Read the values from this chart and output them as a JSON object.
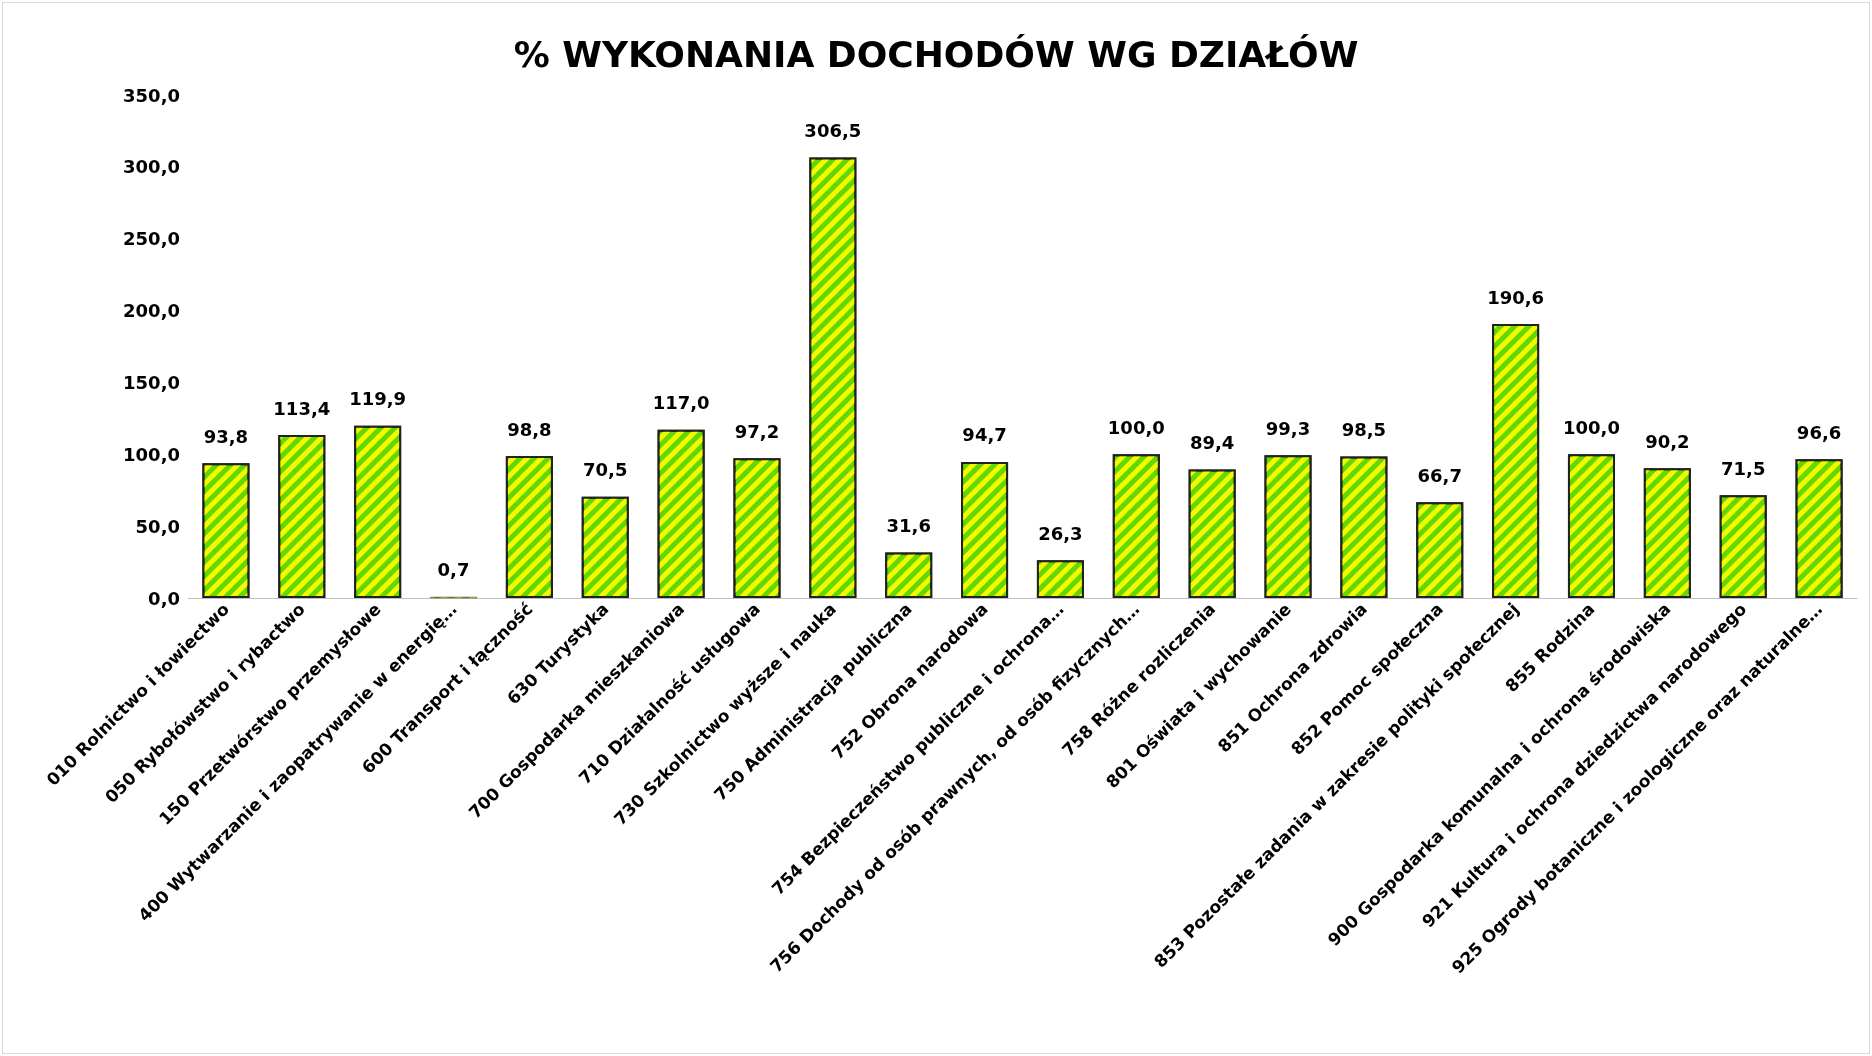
{
  "chart_data": {
    "type": "bar",
    "title": "% WYKONANIA DOCHODÓW WG DZIAŁÓW",
    "categories": [
      "010 Rolnictwo i łowiectwo",
      "050 Rybołówstwo i rybactwo",
      "150 Przetwórstwo przemysłowe",
      "400 Wytwarzanie i zaopatrywanie w energię…",
      "600 Transport i łączność",
      "630 Turystyka",
      "700 Gospodarka mieszkaniowa",
      "710 Działalność usługowa",
      "730 Szkolnictwo wyższe i nauka",
      "750 Administracja publiczna",
      "752 Obrona narodowa",
      "754 Bezpieczeństwo publiczne i ochrona…",
      "756 Dochody od osób prawnych, od osób fizycznych…",
      "758 Różne rozliczenia",
      "801 Oświata i wychowanie",
      "851 Ochrona zdrowia",
      "852 Pomoc społeczna",
      "853 Pozostałe zadania w zakresie polityki społecznej",
      "855 Rodzina",
      "900 Gospodarka komunalna i ochrona środowiska",
      "921 Kultura i ochrona dziedzictwa narodowego",
      "925 Ogrody botaniczne i zoologiczne oraz naturalne…"
    ],
    "values": [
      93.8,
      113.4,
      119.9,
      0.7,
      98.8,
      70.5,
      117.0,
      97.2,
      306.5,
      31.6,
      94.7,
      26.3,
      100.0,
      89.4,
      99.3,
      98.5,
      66.7,
      190.6,
      100.0,
      90.2,
      71.5,
      96.6
    ],
    "value_labels": [
      "93,8",
      "113,4",
      "119,9",
      "0,7",
      "98,8",
      "70,5",
      "117,0",
      "97,2",
      "306,5",
      "31,6",
      "94,7",
      "26,3",
      "100,0",
      "89,4",
      "99,3",
      "98,5",
      "66,7",
      "190,6",
      "100,0",
      "90,2",
      "71,5",
      "96,6"
    ],
    "color": "#66d600",
    "ylim": [
      0,
      350
    ],
    "yticks": [
      {
        "value": 0,
        "label": "0,0"
      },
      {
        "value": 50,
        "label": "50,0"
      },
      {
        "value": 100,
        "label": "100,0"
      },
      {
        "value": 150,
        "label": "150,0"
      },
      {
        "value": 200,
        "label": "200,0"
      },
      {
        "value": 250,
        "label": "250,0"
      },
      {
        "value": 300,
        "label": "300,0"
      },
      {
        "value": 350,
        "label": "350,0"
      }
    ],
    "grid": false
  }
}
